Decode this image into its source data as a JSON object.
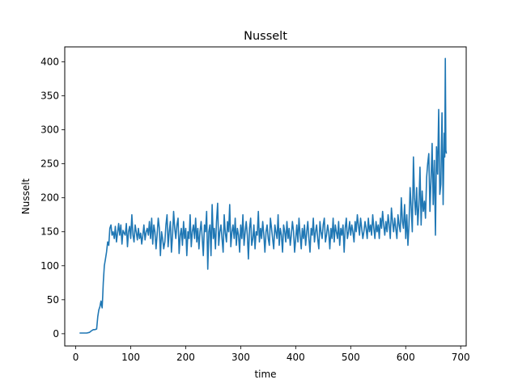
{
  "chart_data": {
    "type": "line",
    "title": "Nusselt",
    "xlabel": "time",
    "ylabel": "Nusselt",
    "xlim": [
      -20,
      710
    ],
    "ylim": [
      -18,
      422
    ],
    "xticks": [
      0,
      100,
      200,
      300,
      400,
      500,
      600,
      700
    ],
    "yticks": [
      0,
      50,
      100,
      150,
      200,
      250,
      300,
      350,
      400
    ],
    "grid": false,
    "legend": "none",
    "line_color": "#1f77b4",
    "series": [
      {
        "x": [
          7,
          10,
          15,
          20,
          25,
          28,
          32,
          35,
          38,
          40,
          42,
          44,
          45,
          46,
          47,
          48,
          49,
          50,
          52,
          54,
          56,
          58,
          60,
          62,
          64,
          66,
          68,
          70,
          72,
          74,
          76,
          78,
          80,
          82,
          84,
          86,
          88,
          90,
          92,
          94,
          96,
          98,
          100,
          102,
          104,
          106,
          108,
          110,
          112,
          114,
          116,
          118,
          120,
          122,
          124,
          126,
          128,
          130,
          132,
          134,
          136,
          138,
          140,
          142,
          144,
          146,
          148,
          150,
          152,
          154,
          156,
          158,
          160,
          162,
          164,
          166,
          168,
          170,
          172,
          174,
          176,
          178,
          180,
          182,
          184,
          186,
          188,
          190,
          192,
          194,
          196,
          198,
          200,
          202,
          204,
          206,
          208,
          210,
          212,
          214,
          216,
          218,
          220,
          222,
          224,
          226,
          228,
          230,
          232,
          234,
          236,
          238,
          240,
          242,
          244,
          246,
          248,
          250,
          252,
          254,
          256,
          258,
          260,
          262,
          264,
          266,
          268,
          270,
          272,
          274,
          276,
          278,
          280,
          282,
          284,
          286,
          288,
          290,
          292,
          294,
          296,
          298,
          300,
          302,
          304,
          306,
          308,
          310,
          312,
          314,
          316,
          318,
          320,
          322,
          324,
          326,
          328,
          330,
          332,
          334,
          336,
          338,
          340,
          342,
          344,
          346,
          348,
          350,
          352,
          354,
          356,
          358,
          360,
          362,
          364,
          366,
          368,
          370,
          372,
          374,
          376,
          378,
          380,
          382,
          384,
          386,
          388,
          390,
          392,
          394,
          396,
          398,
          400,
          402,
          404,
          406,
          408,
          410,
          412,
          414,
          416,
          418,
          420,
          422,
          424,
          426,
          428,
          430,
          432,
          434,
          436,
          438,
          440,
          442,
          444,
          446,
          448,
          450,
          452,
          454,
          456,
          458,
          460,
          462,
          464,
          466,
          468,
          470,
          472,
          474,
          476,
          478,
          480,
          482,
          484,
          486,
          488,
          490,
          492,
          494,
          496,
          498,
          500,
          502,
          504,
          506,
          508,
          510,
          512,
          514,
          516,
          518,
          520,
          522,
          524,
          526,
          528,
          530,
          532,
          534,
          536,
          538,
          540,
          542,
          544,
          546,
          548,
          550,
          552,
          554,
          556,
          558,
          560,
          562,
          564,
          566,
          568,
          570,
          572,
          574,
          576,
          578,
          580,
          582,
          584,
          586,
          588,
          590,
          592,
          594,
          596,
          598,
          600,
          602,
          604,
          606,
          608,
          610,
          612,
          614,
          616,
          618,
          620,
          622,
          624,
          626,
          628,
          630,
          632,
          634,
          636,
          638,
          640,
          642,
          644,
          646,
          648,
          650,
          652,
          654,
          656,
          658,
          660,
          662,
          664,
          666,
          668,
          670,
          671,
          672,
          673,
          674
        ],
        "y": [
          1,
          1,
          1,
          1,
          2,
          4,
          6,
          6,
          7,
          25,
          35,
          40,
          45,
          48,
          42,
          38,
          55,
          75,
          100,
          110,
          120,
          135,
          130,
          155,
          160,
          145,
          150,
          140,
          158,
          135,
          148,
          162,
          145,
          160,
          132,
          152,
          148,
          145,
          162,
          128,
          150,
          158,
          140,
          175,
          145,
          135,
          160,
          150,
          138,
          155,
          140,
          148,
          132,
          145,
          160,
          138,
          150,
          155,
          145,
          165,
          140,
          170,
          132,
          160,
          150,
          125,
          145,
          170,
          155,
          115,
          150,
          140,
          125,
          135,
          160,
          175,
          128,
          150,
          165,
          120,
          145,
          180,
          155,
          140,
          160,
          170,
          118,
          145,
          155,
          130,
          165,
          140,
          155,
          115,
          150,
          140,
          175,
          128,
          150,
          160,
          140,
          170,
          135,
          155,
          125,
          150,
          165,
          140,
          115,
          160,
          150,
          180,
          95,
          150,
          160,
          115,
          190,
          140,
          155,
          125,
          165,
          192,
          130,
          150,
          160,
          140,
          120,
          175,
          148,
          135,
          165,
          150,
          190,
          128,
          150,
          160,
          140,
          170,
          130,
          155,
          145,
          120,
          160,
          140,
          175,
          130,
          150,
          165,
          145,
          110,
          155,
          170,
          130,
          140,
          160,
          125,
          150,
          145,
          180,
          135,
          155,
          140,
          165,
          145,
          120,
          150,
          160,
          140,
          130,
          170,
          155,
          140,
          125,
          160,
          150,
          140,
          175,
          130,
          155,
          145,
          120,
          160,
          150,
          135,
          165,
          140,
          155,
          130,
          145,
          165,
          150,
          120,
          140,
          160,
          135,
          170,
          145,
          125,
          155,
          140,
          160,
          130,
          150,
          165,
          140,
          120,
          155,
          145,
          170,
          135,
          150,
          160,
          140,
          125,
          165,
          150,
          140,
          160,
          170,
          135,
          145,
          160,
          150,
          125,
          155,
          140,
          170,
          135,
          160,
          150,
          140,
          165,
          130,
          155,
          145,
          160,
          120,
          155,
          170,
          140,
          150,
          165,
          145,
          160,
          150,
          135,
          165,
          150,
          175,
          160,
          145,
          170,
          155,
          140,
          150,
          165,
          155,
          140,
          170,
          150,
          160,
          145,
          175,
          155,
          140,
          165,
          150,
          160,
          140,
          170,
          155,
          180,
          160,
          145,
          165,
          150,
          175,
          160,
          140,
          185,
          165,
          150,
          170,
          155,
          140,
          175,
          160,
          150,
          200,
          165,
          155,
          190,
          140,
          175,
          130,
          160,
          215,
          185,
          150,
          260,
          200,
          175,
          215,
          160,
          190,
          245,
          160,
          210,
          180,
          195,
          170,
          230,
          250,
          265,
          180,
          225,
          280,
          190,
          255,
          145,
          275,
          235,
          330,
          205,
          220,
          325,
          190,
          295,
          260,
          405,
          270,
          265
        ],
        "name": ""
      }
    ]
  }
}
